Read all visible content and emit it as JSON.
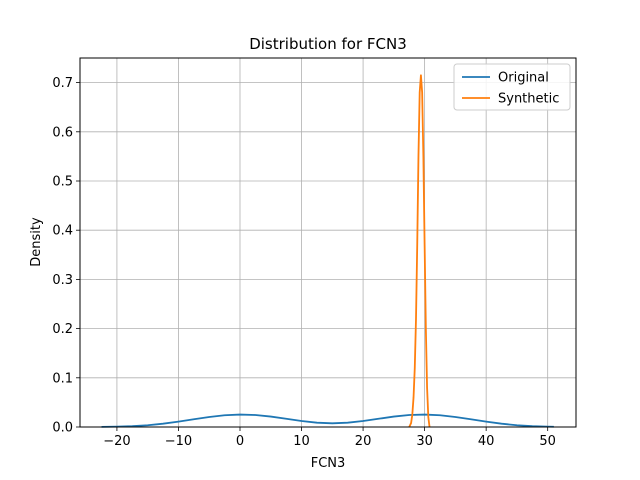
{
  "chart_data": {
    "type": "line",
    "title": "Distribution for FCN3",
    "xlabel": "FCN3",
    "ylabel": "Density",
    "xlim": [
      -26,
      54.6
    ],
    "ylim": [
      0,
      0.75
    ],
    "xticks": [
      -20,
      -10,
      0,
      10,
      20,
      30,
      40,
      50
    ],
    "yticks": [
      0.0,
      0.1,
      0.2,
      0.3,
      0.4,
      0.5,
      0.6,
      0.7
    ],
    "grid": true,
    "legend_position": "top-right",
    "series": [
      {
        "name": "Original",
        "color": "#1f77b4",
        "x": [
          -22.5,
          -20,
          -17.5,
          -15,
          -12.5,
          -10,
          -7.5,
          -5,
          -2.5,
          0,
          2.5,
          5,
          7.5,
          10,
          12.5,
          15,
          17.5,
          20,
          22.5,
          25,
          27.5,
          30,
          32.5,
          35,
          37.5,
          40,
          42.5,
          45,
          47.5,
          50,
          51
        ],
        "y": [
          0.0003,
          0.0007,
          0.0017,
          0.0036,
          0.0067,
          0.0109,
          0.0157,
          0.0204,
          0.0239,
          0.0253,
          0.0244,
          0.0212,
          0.0167,
          0.0122,
          0.0088,
          0.0075,
          0.0088,
          0.0122,
          0.0167,
          0.0212,
          0.0244,
          0.0253,
          0.0239,
          0.0204,
          0.0157,
          0.0109,
          0.0067,
          0.0036,
          0.0017,
          0.0007,
          0.0005
        ]
      },
      {
        "name": "Synthetic",
        "color": "#ff7f0e",
        "x": [
          27.5,
          27.8,
          28.0,
          28.2,
          28.4,
          28.6,
          28.8,
          29.0,
          29.2,
          29.4,
          29.6,
          29.8,
          30.0,
          30.2,
          30.4,
          30.6,
          30.8
        ],
        "y": [
          0.0,
          0.008,
          0.025,
          0.06,
          0.12,
          0.22,
          0.37,
          0.55,
          0.68,
          0.715,
          0.68,
          0.55,
          0.37,
          0.2,
          0.08,
          0.02,
          0.0
        ]
      }
    ]
  }
}
